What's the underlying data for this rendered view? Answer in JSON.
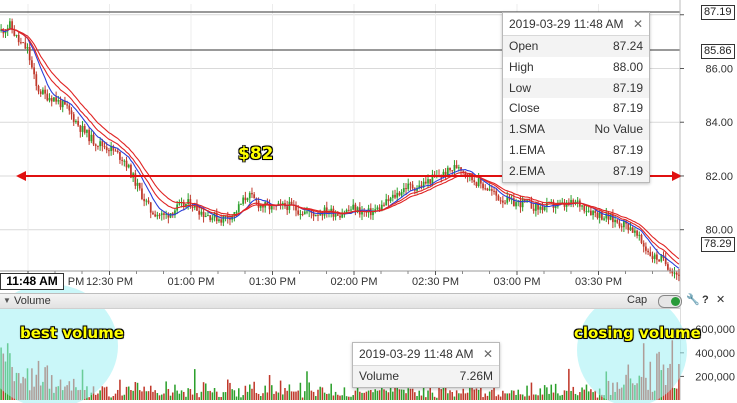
{
  "chart_data": [
    {
      "type": "candlestick",
      "title": "",
      "x_tick_labels": [
        "12:00 PM",
        "12:30 PM",
        "01:00 PM",
        "01:30 PM",
        "02:00 PM",
        "02:30 PM",
        "03:00 PM",
        "03:30 PM"
      ],
      "y_tick_labels": [
        "80.00",
        "82.00",
        "84.00",
        "86.00",
        "88.00"
      ],
      "ylim": [
        78.5,
        88.4
      ],
      "y_grid": [
        80,
        82,
        84,
        86,
        88
      ],
      "visible_first_tick_label": "PM",
      "cursor_time_label": "11:48 AM",
      "price_flags": [
        "87.19",
        "85.86",
        "78.29"
      ],
      "price_path": [
        [
          0,
          87.4
        ],
        [
          4,
          87.6
        ],
        [
          8,
          87.0
        ],
        [
          12,
          86.7
        ],
        [
          16,
          85.3
        ],
        [
          20,
          85.0
        ],
        [
          24,
          84.9
        ],
        [
          30,
          84.5
        ],
        [
          36,
          83.8
        ],
        [
          42,
          83.3
        ],
        [
          50,
          83.0
        ],
        [
          56,
          82.6
        ],
        [
          62,
          81.6
        ],
        [
          68,
          80.7
        ],
        [
          74,
          80.5
        ],
        [
          80,
          80.8
        ],
        [
          86,
          81.0
        ],
        [
          92,
          80.6
        ],
        [
          100,
          80.4
        ],
        [
          106,
          80.6
        ],
        [
          112,
          81.3
        ],
        [
          118,
          80.9
        ],
        [
          124,
          80.8
        ],
        [
          130,
          80.9
        ],
        [
          136,
          80.7
        ],
        [
          142,
          80.6
        ],
        [
          148,
          80.7
        ],
        [
          154,
          80.6
        ],
        [
          160,
          80.8
        ],
        [
          166,
          80.6
        ],
        [
          172,
          80.8
        ],
        [
          178,
          81.2
        ],
        [
          184,
          81.6
        ],
        [
          190,
          81.6
        ],
        [
          196,
          81.9
        ],
        [
          202,
          82.1
        ],
        [
          208,
          82.4
        ],
        [
          214,
          81.9
        ],
        [
          220,
          81.6
        ],
        [
          226,
          81.2
        ],
        [
          232,
          81.0
        ],
        [
          238,
          81.0
        ],
        [
          244,
          80.8
        ],
        [
          250,
          80.9
        ],
        [
          256,
          80.9
        ],
        [
          262,
          81.0
        ],
        [
          268,
          80.7
        ],
        [
          274,
          80.5
        ],
        [
          280,
          80.3
        ],
        [
          286,
          80.1
        ],
        [
          292,
          79.4
        ],
        [
          296,
          79.0
        ],
        [
          300,
          78.9
        ],
        [
          304,
          78.6
        ],
        [
          308,
          78.3
        ]
      ],
      "sma_label": "1.SMA",
      "ema_label": "1.EMA",
      "ema2_label": "2.EMA",
      "series_colors": {
        "up": "#2ca02c",
        "down": "#c0392b",
        "sma": "#2a3fd8",
        "ema": "#e02424",
        "horizontal_line": "#e01010"
      },
      "horizontal_level": 82.0,
      "annotation": "$82"
    },
    {
      "type": "bar",
      "title": "Volume",
      "y_tick_labels": [
        "200,000",
        "400,000",
        "600,000"
      ],
      "ylim": [
        0,
        780000
      ],
      "annotations": [
        "best volume",
        "closing volume"
      ]
    }
  ],
  "price_tooltip": {
    "datetime": "2019-03-29 11:48 AM",
    "rows": [
      {
        "label": "Open",
        "value": "87.24"
      },
      {
        "label": "High",
        "value": "88.00"
      },
      {
        "label": "Low",
        "value": "87.19"
      },
      {
        "label": "Close",
        "value": "87.19"
      },
      {
        "label": "1.SMA",
        "value": "No Value"
      },
      {
        "label": "1.EMA",
        "value": "87.19"
      },
      {
        "label": "2.EMA",
        "value": "87.19"
      }
    ]
  },
  "volume_tooltip": {
    "datetime": "2019-03-29 11:48 AM",
    "label": "Volume",
    "value": "7.26M"
  },
  "volume_panel": {
    "title": "Volume",
    "cap_label": "Cap",
    "wrench_icon": "wrench-icon",
    "help_icon": "help-icon",
    "close_icon": "close-icon"
  }
}
